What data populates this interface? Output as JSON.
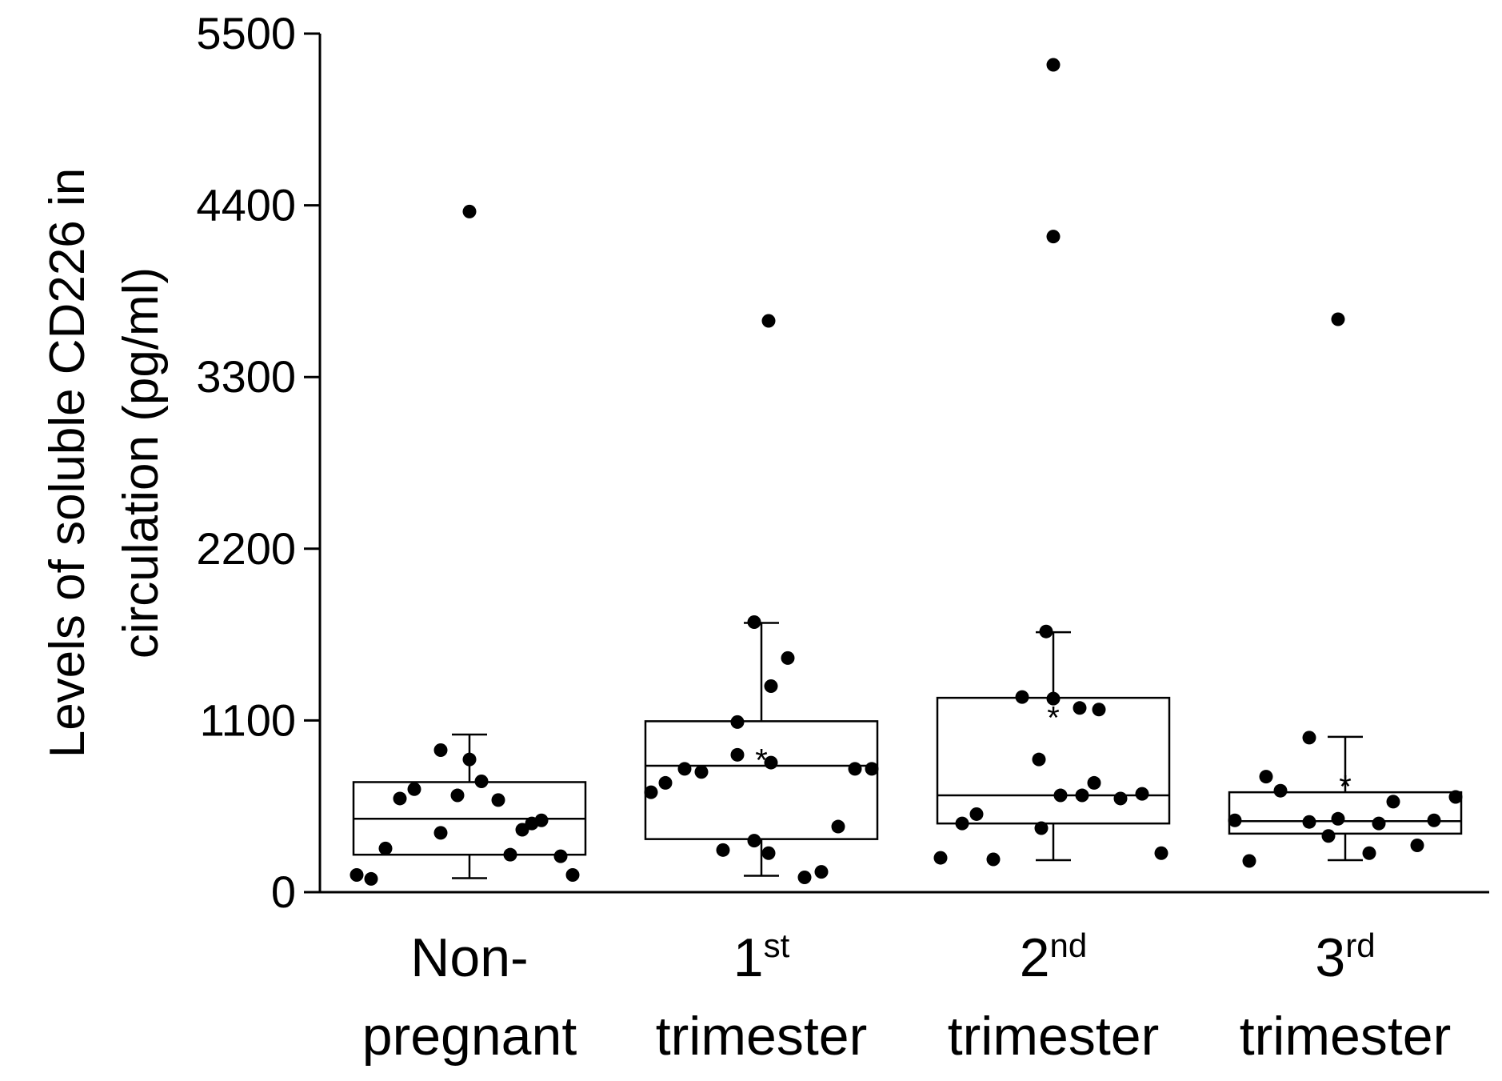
{
  "chart_data": {
    "type": "box",
    "ylabel_lines": [
      "Levels of soluble CD226 in",
      "circulation (pg/ml)"
    ],
    "xlabel": "",
    "ylim": [
      0,
      5500
    ],
    "yticks": [
      "0",
      "1100",
      "2200",
      "3300",
      "4400",
      "5500"
    ],
    "grid": false,
    "categories": [
      {
        "line1": "Non-",
        "sup": "",
        "line2": "pregnant"
      },
      {
        "line1": "1",
        "sup": "st",
        "line2": "trimester"
      },
      {
        "line1": "2",
        "sup": "nd",
        "line2": "trimester"
      },
      {
        "line1": "3",
        "sup": "rd",
        "line2": "trimester"
      }
    ],
    "boxes": [
      {
        "whisker_low": 90,
        "q1": 240,
        "median": 470,
        "q3": 705,
        "whisker_high": 1010,
        "mean": null,
        "points": [
          {
            "dx": -0.47,
            "y": 110
          },
          {
            "dx": -0.41,
            "y": 85
          },
          {
            "dx": -0.35,
            "y": 280
          },
          {
            "dx": -0.29,
            "y": 600
          },
          {
            "dx": -0.23,
            "y": 660
          },
          {
            "dx": -0.12,
            "y": 910
          },
          {
            "dx": -0.12,
            "y": 380
          },
          {
            "dx": -0.05,
            "y": 620
          },
          {
            "dx": 0.0,
            "y": 4360
          },
          {
            "dx": 0.0,
            "y": 850
          },
          {
            "dx": 0.05,
            "y": 710
          },
          {
            "dx": 0.12,
            "y": 590
          },
          {
            "dx": 0.17,
            "y": 240
          },
          {
            "dx": 0.22,
            "y": 400
          },
          {
            "dx": 0.26,
            "y": 440
          },
          {
            "dx": 0.3,
            "y": 460
          },
          {
            "dx": 0.38,
            "y": 230
          },
          {
            "dx": 0.43,
            "y": 110
          }
        ]
      },
      {
        "whisker_low": 105,
        "q1": 340,
        "median": 810,
        "q3": 1095,
        "whisker_high": 1725,
        "mean": 890,
        "points": [
          {
            "dx": -0.46,
            "y": 640
          },
          {
            "dx": -0.4,
            "y": 700
          },
          {
            "dx": -0.32,
            "y": 790
          },
          {
            "dx": -0.25,
            "y": 770
          },
          {
            "dx": -0.16,
            "y": 270
          },
          {
            "dx": -0.1,
            "y": 1090
          },
          {
            "dx": -0.1,
            "y": 880
          },
          {
            "dx": -0.03,
            "y": 330
          },
          {
            "dx": -0.03,
            "y": 1730
          },
          {
            "dx": 0.03,
            "y": 3660
          },
          {
            "dx": 0.03,
            "y": 250
          },
          {
            "dx": 0.04,
            "y": 830
          },
          {
            "dx": 0.04,
            "y": 1320
          },
          {
            "dx": 0.18,
            "y": 95
          },
          {
            "dx": 0.25,
            "y": 130
          },
          {
            "dx": 0.11,
            "y": 1500
          },
          {
            "dx": 0.32,
            "y": 420
          },
          {
            "dx": 0.39,
            "y": 790
          },
          {
            "dx": 0.46,
            "y": 790
          }
        ]
      },
      {
        "whisker_low": 205,
        "q1": 440,
        "median": 620,
        "q3": 1245,
        "whisker_high": 1665,
        "mean": 1160,
        "points": [
          {
            "dx": -0.47,
            "y": 220
          },
          {
            "dx": -0.38,
            "y": 440
          },
          {
            "dx": -0.32,
            "y": 500
          },
          {
            "dx": -0.25,
            "y": 210
          },
          {
            "dx": -0.13,
            "y": 1250
          },
          {
            "dx": -0.03,
            "y": 1670
          },
          {
            "dx": -0.06,
            "y": 850
          },
          {
            "dx": -0.05,
            "y": 410
          },
          {
            "dx": 0.0,
            "y": 5300
          },
          {
            "dx": 0.0,
            "y": 4200
          },
          {
            "dx": 0.0,
            "y": 1240
          },
          {
            "dx": 0.03,
            "y": 620
          },
          {
            "dx": 0.11,
            "y": 1180
          },
          {
            "dx": 0.12,
            "y": 620
          },
          {
            "dx": 0.17,
            "y": 700
          },
          {
            "dx": 0.19,
            "y": 1170
          },
          {
            "dx": 0.28,
            "y": 600
          },
          {
            "dx": 0.37,
            "y": 630
          },
          {
            "dx": 0.45,
            "y": 250
          }
        ]
      },
      {
        "whisker_low": 205,
        "q1": 375,
        "median": 455,
        "q3": 640,
        "whisker_high": 995,
        "mean": 720,
        "points": [
          {
            "dx": -0.46,
            "y": 460
          },
          {
            "dx": -0.4,
            "y": 200
          },
          {
            "dx": -0.33,
            "y": 740
          },
          {
            "dx": -0.27,
            "y": 650
          },
          {
            "dx": -0.15,
            "y": 450
          },
          {
            "dx": -0.15,
            "y": 990
          },
          {
            "dx": -0.07,
            "y": 360
          },
          {
            "dx": -0.03,
            "y": 3670
          },
          {
            "dx": -0.03,
            "y": 470
          },
          {
            "dx": 0.1,
            "y": 250
          },
          {
            "dx": 0.14,
            "y": 440
          },
          {
            "dx": 0.2,
            "y": 580
          },
          {
            "dx": 0.3,
            "y": 300
          },
          {
            "dx": 0.37,
            "y": 460
          },
          {
            "dx": 0.46,
            "y": 610
          }
        ]
      }
    ]
  }
}
